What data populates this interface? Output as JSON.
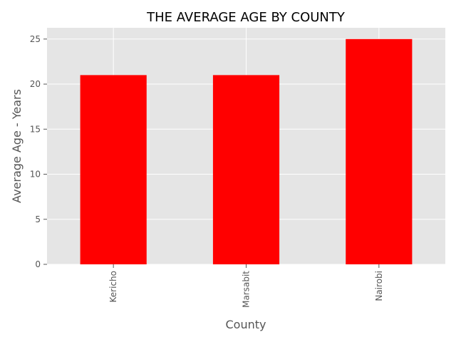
{
  "chart_data": {
    "type": "bar",
    "title": "THE AVERAGE AGE BY COUNTY",
    "xlabel": "County",
    "ylabel": "Average Age - Years",
    "categories": [
      "Kericho",
      "Marsabit",
      "Nairobi"
    ],
    "values": [
      21,
      21,
      25
    ],
    "ylim": [
      0,
      26.25
    ],
    "yticks": [
      "0",
      "5",
      "10",
      "15",
      "20",
      "25"
    ],
    "grid": true,
    "bar_color": "#ff0000",
    "plot_background": "#e5e5e5",
    "grid_color": "#ffffff"
  }
}
